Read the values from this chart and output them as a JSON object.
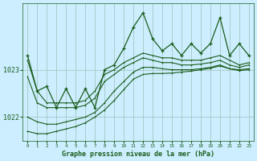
{
  "background_color": "#cceeff",
  "grid_color": "#aacccc",
  "line_color": "#1a5c1a",
  "xlim": [
    -0.5,
    23.5
  ],
  "ylim": [
    1021.5,
    1024.4
  ],
  "yticks": [
    1022,
    1023
  ],
  "xticks": [
    0,
    1,
    2,
    3,
    4,
    5,
    6,
    7,
    8,
    9,
    10,
    11,
    12,
    13,
    14,
    15,
    16,
    17,
    18,
    19,
    20,
    21,
    22,
    23
  ],
  "xlabel": "Graphe pression niveau de la mer (hPa)",
  "hours": [
    0,
    1,
    2,
    3,
    4,
    5,
    6,
    7,
    8,
    9,
    10,
    11,
    12,
    13,
    14,
    15,
    16,
    17,
    18,
    19,
    20,
    21,
    22,
    23
  ],
  "series_zigzag": [
    1023.3,
    1022.55,
    1022.65,
    1022.2,
    1022.6,
    1022.2,
    1022.6,
    1022.2,
    1023.0,
    1023.1,
    1023.45,
    1023.9,
    1024.2,
    1023.65,
    1023.4,
    1023.55,
    1023.3,
    1023.55,
    1023.35,
    1023.55,
    1024.1,
    1023.3,
    1023.55,
    1023.3
  ],
  "series_smooth1": [
    1023.2,
    1022.55,
    1022.3,
    1022.3,
    1022.3,
    1022.3,
    1022.35,
    1022.55,
    1022.9,
    1023.0,
    1023.15,
    1023.25,
    1023.35,
    1023.3,
    1023.25,
    1023.25,
    1023.2,
    1023.2,
    1023.2,
    1023.25,
    1023.3,
    1023.2,
    1023.1,
    1023.15
  ],
  "series_smooth2": [
    1022.85,
    1022.3,
    1022.2,
    1022.2,
    1022.2,
    1022.2,
    1022.25,
    1022.4,
    1022.75,
    1022.9,
    1023.05,
    1023.15,
    1023.25,
    1023.2,
    1023.15,
    1023.15,
    1023.1,
    1023.1,
    1023.12,
    1023.15,
    1023.2,
    1023.1,
    1023.05,
    1023.1
  ],
  "series_smooth3": [
    1022.0,
    1021.9,
    1021.85,
    1021.85,
    1021.9,
    1021.95,
    1022.0,
    1022.1,
    1022.3,
    1022.55,
    1022.75,
    1022.95,
    1023.05,
    1023.05,
    1023.02,
    1023.0,
    1023.0,
    1023.0,
    1023.02,
    1023.05,
    1023.1,
    1023.02,
    1023.0,
    1023.02
  ],
  "series_smooth4": [
    1021.7,
    1021.65,
    1021.65,
    1021.7,
    1021.75,
    1021.8,
    1021.88,
    1022.0,
    1022.15,
    1022.35,
    1022.58,
    1022.8,
    1022.9,
    1022.92,
    1022.92,
    1022.93,
    1022.95,
    1022.97,
    1023.0,
    1023.03,
    1023.08,
    1023.02,
    1022.98,
    1023.0
  ]
}
